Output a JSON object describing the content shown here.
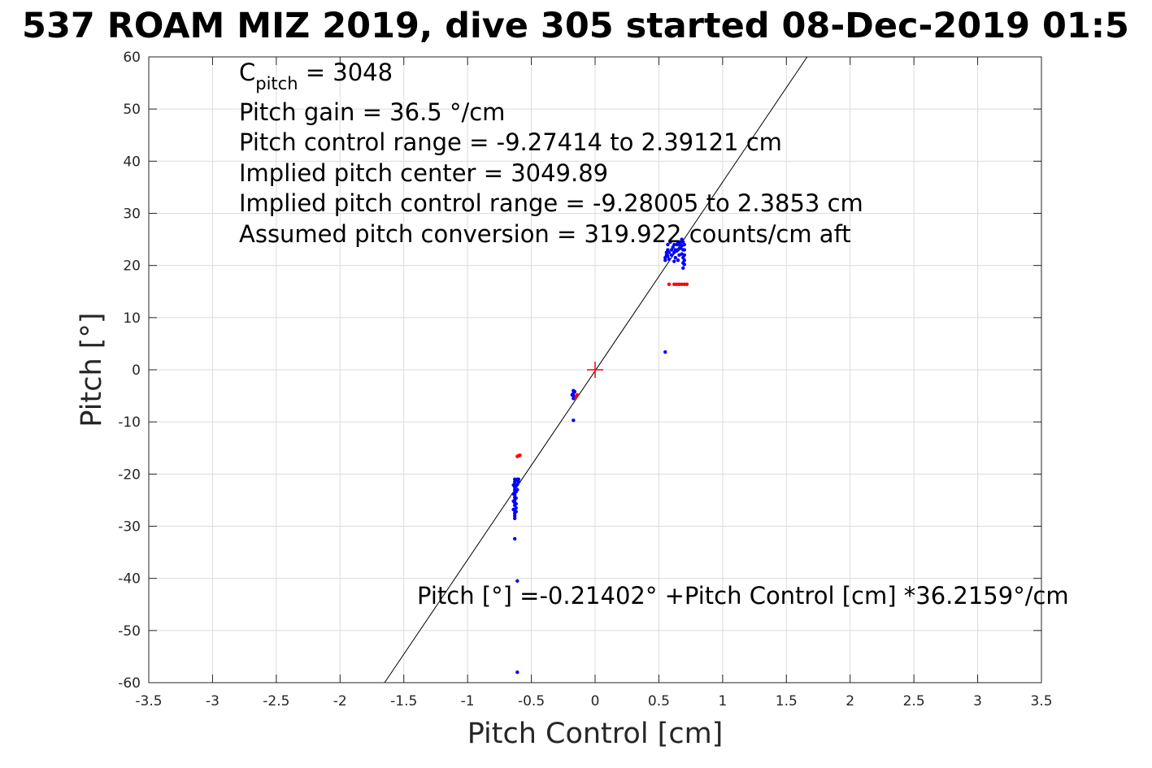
{
  "chart_data": {
    "type": "scatter",
    "title": "537 ROAM MIZ 2019, dive 305 started 08-Dec-2019 01:5",
    "xlabel": "Pitch Control [cm]",
    "ylabel": "Pitch [°]",
    "xlim": [
      -3.5,
      3.5
    ],
    "ylim": [
      -60,
      60
    ],
    "xticks": [
      -3.5,
      -3,
      -2.5,
      -2,
      -1.5,
      -1,
      -0.5,
      0,
      0.5,
      1,
      1.5,
      2,
      2.5,
      3,
      3.5
    ],
    "xtick_labels": [
      "-3.5",
      "-3",
      "-2.5",
      "-2",
      "-1.5",
      "-1",
      "-0.5",
      "0",
      "0.5",
      "1",
      "1.5",
      "2",
      "2.5",
      "3",
      "3.5"
    ],
    "yticks": [
      -60,
      -50,
      -40,
      -30,
      -20,
      -10,
      0,
      10,
      20,
      30,
      40,
      50,
      60
    ],
    "ytick_labels": [
      "-60",
      "-50",
      "-40",
      "-30",
      "-20",
      "-10",
      "0",
      "10",
      "20",
      "30",
      "40",
      "50",
      "60"
    ],
    "grid": true,
    "series": [
      {
        "color": "#0000ff",
        "points": [
          [
            -0.63,
            -21
          ],
          [
            -0.63,
            -21.5
          ],
          [
            -0.63,
            -22
          ],
          [
            -0.63,
            -22.5
          ],
          [
            -0.63,
            -23
          ],
          [
            -0.63,
            -23.5
          ],
          [
            -0.63,
            -24
          ],
          [
            -0.63,
            -24.5
          ],
          [
            -0.63,
            -25
          ],
          [
            -0.63,
            -25.5
          ],
          [
            -0.63,
            -26
          ],
          [
            -0.63,
            -27
          ],
          [
            -0.63,
            -27.5
          ],
          [
            -0.62,
            -21.2
          ],
          [
            -0.62,
            -22.3
          ],
          [
            -0.62,
            -23.4
          ],
          [
            -0.62,
            -24.6
          ],
          [
            -0.62,
            -25.7
          ],
          [
            -0.62,
            -26.5
          ],
          [
            -0.64,
            -22.1
          ],
          [
            -0.64,
            -23.8
          ],
          [
            -0.64,
            -25.2
          ],
          [
            -0.64,
            -26.8
          ],
          [
            -0.61,
            -21
          ],
          [
            -0.61,
            -22
          ],
          [
            -0.61,
            -23
          ],
          [
            -0.6,
            -21
          ],
          [
            -0.6,
            -21.5
          ],
          [
            -0.63,
            -28
          ],
          [
            -0.63,
            -28.5
          ],
          [
            -0.62,
            -27.2
          ],
          [
            -0.63,
            -32.4
          ],
          [
            -0.61,
            -40.5
          ],
          [
            -0.61,
            -58
          ],
          [
            -0.17,
            -4
          ],
          [
            -0.17,
            -4.5
          ],
          [
            -0.17,
            -5
          ],
          [
            -0.17,
            -5.5
          ],
          [
            -0.16,
            -4.2
          ],
          [
            -0.16,
            -5.2
          ],
          [
            -0.18,
            -4.8
          ],
          [
            -0.17,
            -9.7
          ],
          [
            0.55,
            3.4
          ],
          [
            0.55,
            21
          ],
          [
            0.55,
            21.5
          ],
          [
            0.56,
            22
          ],
          [
            0.56,
            22.5
          ],
          [
            0.57,
            23
          ],
          [
            0.57,
            21.8
          ],
          [
            0.58,
            22.5
          ],
          [
            0.58,
            21.2
          ],
          [
            0.6,
            23
          ],
          [
            0.6,
            22
          ],
          [
            0.61,
            23.5
          ],
          [
            0.62,
            22.5
          ],
          [
            0.62,
            24
          ],
          [
            0.63,
            23
          ],
          [
            0.63,
            21.5
          ],
          [
            0.64,
            24
          ],
          [
            0.64,
            22.8
          ],
          [
            0.65,
            24.5
          ],
          [
            0.65,
            23
          ],
          [
            0.66,
            24
          ],
          [
            0.66,
            22
          ],
          [
            0.67,
            24.5
          ],
          [
            0.67,
            23.3
          ],
          [
            0.68,
            25
          ],
          [
            0.68,
            23.8
          ],
          [
            0.68,
            22.2
          ],
          [
            0.69,
            24.5
          ],
          [
            0.69,
            23
          ],
          [
            0.69,
            21.5
          ],
          [
            0.69,
            20.5
          ],
          [
            0.69,
            19.5
          ],
          [
            0.7,
            24
          ],
          [
            0.7,
            23
          ],
          [
            0.7,
            22
          ],
          [
            0.7,
            21
          ],
          [
            0.7,
            20.2
          ],
          [
            0.59,
            24.5
          ],
          [
            0.62,
            20.8
          ],
          [
            0.65,
            21
          ],
          [
            0.57,
            24
          ]
        ]
      },
      {
        "color": "#ff0000",
        "points": [
          [
            -0.6,
            -16.5
          ],
          [
            -0.59,
            -16.4
          ],
          [
            -0.61,
            -16.6
          ],
          [
            0.58,
            16.4
          ],
          [
            0.62,
            16.4
          ],
          [
            0.64,
            16.4
          ],
          [
            0.66,
            16.4
          ],
          [
            0.68,
            16.4
          ],
          [
            0.7,
            16.4
          ],
          [
            0.72,
            16.4
          ],
          [
            -0.15,
            -5.2
          ],
          [
            -0.14,
            -4.8
          ]
        ]
      }
    ],
    "fit_line": {
      "intercept": -0.21402,
      "slope": 36.2159,
      "color": "#000000"
    },
    "marker": {
      "x": 0,
      "y": 0,
      "symbol": "+",
      "color": "#ff0000"
    },
    "annotations": {
      "c_pitch_main": "C",
      "c_pitch_sub": "pitch",
      "c_pitch_value": " = 3048",
      "pitch_gain": "Pitch gain = 36.5 °/cm",
      "control_range": "Pitch control range = -9.27414 to 2.39121 cm",
      "implied_center": "Implied pitch center = 3049.89",
      "implied_range": "Implied pitch control range = -9.28005 to 2.3853 cm",
      "conversion": "Assumed pitch conversion = 319.922 counts/cm aft",
      "fit_equation": "Pitch [°] =-0.21402° +Pitch Control [cm] *36.2159°/cm"
    }
  }
}
